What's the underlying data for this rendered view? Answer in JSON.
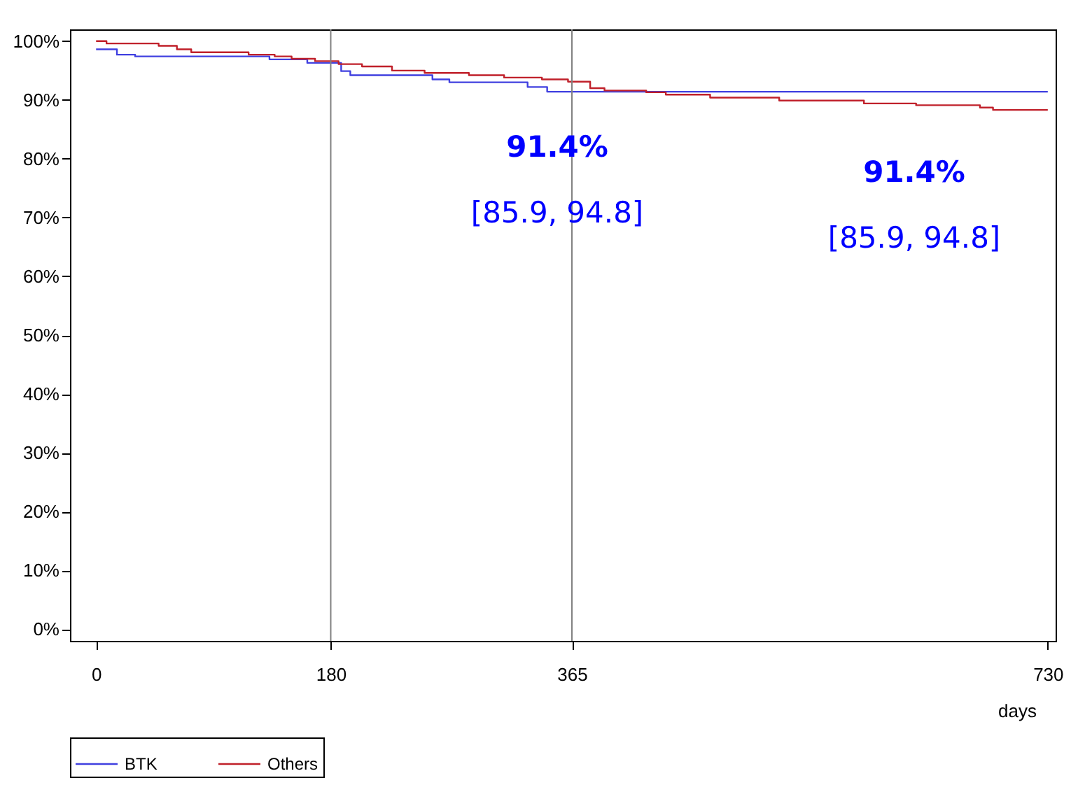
{
  "chart_data": {
    "type": "step",
    "xlabel": "days",
    "xlim": [
      -20,
      736
    ],
    "xticks": [
      0,
      180,
      365,
      730
    ],
    "ylim": [
      -2,
      102
    ],
    "yticks": [
      {
        "value": 0,
        "label": "0%"
      },
      {
        "value": 10,
        "label": "10%"
      },
      {
        "value": 20,
        "label": "20%"
      },
      {
        "value": 30,
        "label": "30%"
      },
      {
        "value": 40,
        "label": "40%"
      },
      {
        "value": 50,
        "label": "50%"
      },
      {
        "value": 60,
        "label": "60%"
      },
      {
        "value": 70,
        "label": "70%"
      },
      {
        "value": 80,
        "label": "80%"
      },
      {
        "value": 90,
        "label": "90%"
      },
      {
        "value": 100,
        "label": "100%"
      }
    ],
    "grid": false,
    "legend": "bottom",
    "marker": "none",
    "line_style": "solid",
    "series": [
      {
        "name": "BTK",
        "color": "#4040e0",
        "x": [
          0,
          16,
          30,
          133,
          162,
          188,
          195,
          258,
          271,
          331,
          346,
          730
        ],
        "values": [
          98.6,
          97.7,
          97.4,
          96.9,
          96.3,
          94.9,
          94.2,
          93.5,
          93.0,
          92.2,
          91.4,
          91.4
        ]
      },
      {
        "name": "Others",
        "color": "#c0202a",
        "x": [
          0,
          8,
          48,
          62,
          73,
          117,
          137,
          150,
          168,
          186,
          204,
          227,
          252,
          286,
          313,
          342,
          362,
          379,
          390,
          422,
          437,
          471,
          524,
          589,
          629,
          678,
          688,
          730
        ],
        "values": [
          100,
          99.6,
          99.2,
          98.6,
          98.1,
          97.7,
          97.4,
          97.0,
          96.6,
          96.1,
          95.7,
          95.0,
          94.6,
          94.2,
          93.8,
          93.5,
          93.1,
          92.0,
          91.6,
          91.3,
          90.9,
          90.4,
          89.9,
          89.4,
          89.1,
          88.7,
          88.3,
          88.3
        ]
      }
    ],
    "ref_lines": [
      {
        "axis": "x",
        "value": 180,
        "color": "#808080"
      },
      {
        "axis": "x",
        "value": 365,
        "color": "#808080"
      }
    ],
    "annotations": [
      "91.4%",
      "[85.9, 94.8]",
      "91.4%",
      "[85.9, 94.8]"
    ]
  }
}
